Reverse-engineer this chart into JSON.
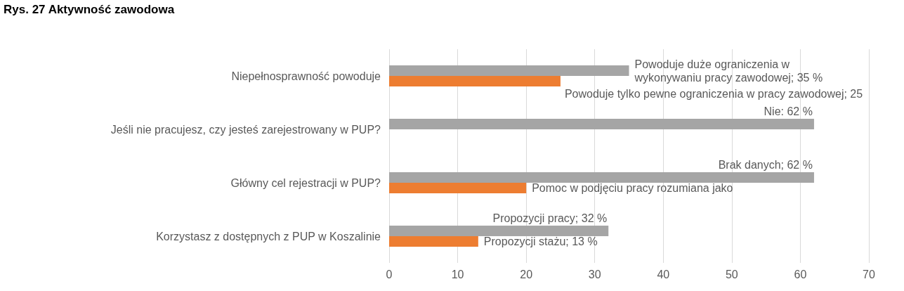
{
  "chart_data": {
    "type": "bar",
    "orientation": "horizontal",
    "title": "Rys. 27 Aktywność zawodowa",
    "categories": [
      "Niepełnosprawność powoduje",
      "Jeśli nie pracujesz, czy jesteś zarejestrowany w PUP?",
      "Główny cel rejestracji w PUP?",
      "Korzystasz z dostępnych z PUP w Koszalinie"
    ],
    "series": [
      {
        "color": "#a5a5a5",
        "values": [
          35,
          62,
          62,
          32
        ],
        "value_labels": [
          "Powoduje duże ograniczenia w wykonywaniu pracy zawodowej; 35 %",
          "Nie: 62 %",
          "Brak danych; 62 %",
          "Propozycji pracy; 32 %"
        ]
      },
      {
        "color": "#ed7d31",
        "values": [
          25,
          null,
          20,
          13
        ],
        "value_labels": [
          "Powoduje tylko pewne ograniczenia w pracy zawodowej; 25",
          null,
          "Pomoc w podjęciu pracy rozumiana jako",
          "Propozycji stażu; 13 %"
        ]
      }
    ],
    "xlim": [
      0,
      70
    ],
    "xticks": [
      0,
      10,
      20,
      30,
      40,
      50,
      60,
      70
    ],
    "grid": "x"
  }
}
